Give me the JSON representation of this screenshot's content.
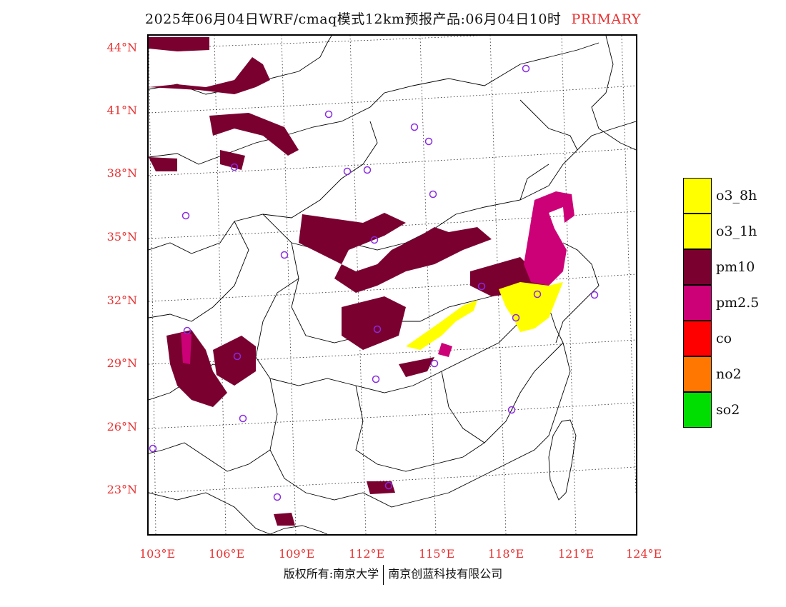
{
  "title": {
    "text": "2025年06月04日WRF/cmaq模式12km预报产品:06月04日10时",
    "tag": "PRIMARY"
  },
  "lat_labels": [
    "44°N",
    "41°N",
    "38°N",
    "35°N",
    "32°N",
    "29°N",
    "26°N",
    "23°N"
  ],
  "lon_labels": [
    "103°E",
    "106°E",
    "109°E",
    "112°E",
    "115°E",
    "118°E",
    "121°E",
    "124°E"
  ],
  "legend": [
    {
      "label": "o3_8h",
      "color": "#ffff00"
    },
    {
      "label": "o3_1h",
      "color": "#ffff00"
    },
    {
      "label": "pm10",
      "color": "#7a0030"
    },
    {
      "label": "pm2.5",
      "color": "#cc0077"
    },
    {
      "label": "co",
      "color": "#ff0000"
    },
    {
      "label": "no2",
      "color": "#ff7700"
    },
    {
      "label": "so2",
      "color": "#00dd00"
    }
  ],
  "footer": {
    "left": "版权所有:南京大学",
    "right": "南京创蓝科技有限公司"
  },
  "colors": {
    "label_red": "#e83030",
    "pm10": "#7a0030",
    "pm25": "#cc0077",
    "o3": "#ffff00",
    "station": "#8a2be2"
  }
}
